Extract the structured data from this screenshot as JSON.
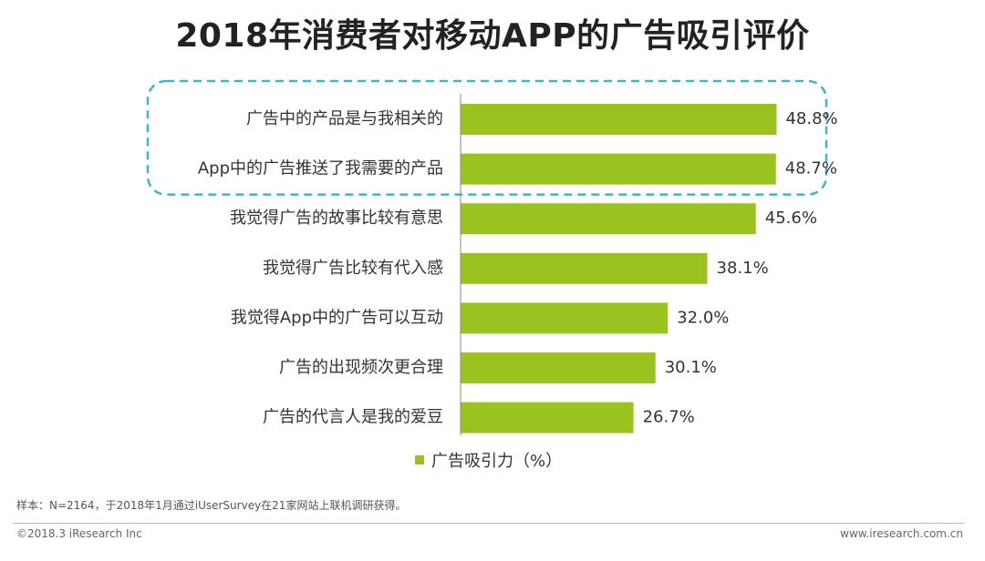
{
  "header": {
    "title": "2018年消费者对移动APP的广告吸引评价"
  },
  "chart_data": {
    "type": "bar",
    "orientation": "horizontal",
    "title": "2018年消费者对移动APP的广告吸引评价",
    "categories": [
      "广告中的产品是与我相关的",
      "App中的广告推送了我需要的产品",
      "我觉得广告的故事比较有意思",
      "我觉得广告比较有代入感",
      "我觉得App中的广告可以互动",
      "广告的出现频次更合理",
      "广告的代言人是我的爱豆"
    ],
    "series": [
      {
        "name": "广告吸引力（%）",
        "values": [
          48.8,
          48.7,
          45.6,
          38.1,
          32.0,
          30.1,
          26.7
        ],
        "value_labels": [
          "48.8%",
          "48.7%",
          "45.6%",
          "38.1%",
          "32.0%",
          "30.1%",
          "26.7%"
        ]
      }
    ],
    "xlim": [
      0,
      50
    ],
    "highlighted_categories": [
      0,
      1
    ],
    "legend_position": "bottom",
    "grid": false,
    "bar_color": "#9bc31f",
    "highlight_color": "#3bb7c9"
  },
  "legend": {
    "label": "广告吸引力（%）"
  },
  "footer": {
    "note": "样本：N=2164，于2018年1月通过iUserSurvey在21家网站上联机调研获得。",
    "copyright": "©2018.3 iResearch Inc",
    "website": "www.iresearch.com.cn"
  }
}
